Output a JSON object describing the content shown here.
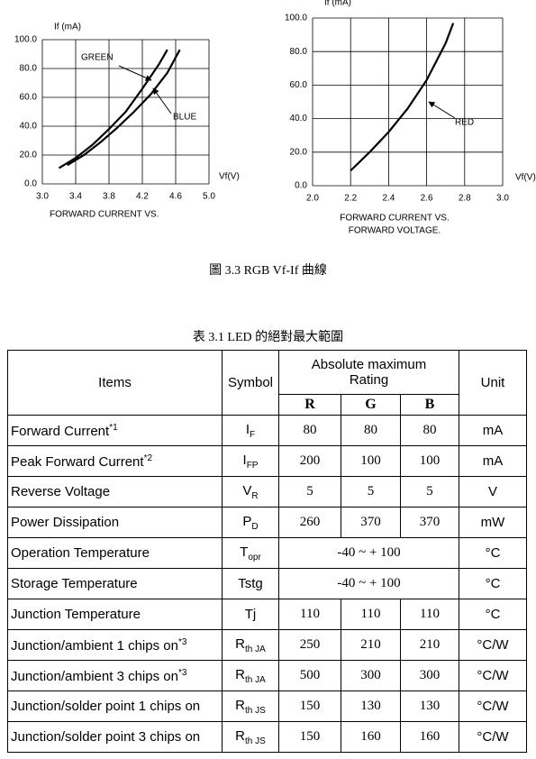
{
  "chart_data": [
    {
      "type": "line",
      "y_label": "If (mA)",
      "x_label": "Vf(V)",
      "subtitle": [
        "FORWARD CURRENT VS."
      ],
      "xlim": [
        3.0,
        5.0
      ],
      "xticks": [
        {
          "value": 3.0,
          "label": "3.0"
        },
        {
          "value": 3.4,
          "label": "3.4"
        },
        {
          "value": 3.8,
          "label": "3.8"
        },
        {
          "value": 4.2,
          "label": "4.2"
        },
        {
          "value": 4.6,
          "label": "4.6"
        },
        {
          "value": 5.0,
          "label": "5.0"
        }
      ],
      "ylim": [
        0,
        100
      ],
      "yticks": [
        {
          "value": 0,
          "label": "0.0"
        },
        {
          "value": 20,
          "label": "20.0"
        },
        {
          "value": 40,
          "label": "40.0"
        },
        {
          "value": 60,
          "label": "60.0"
        },
        {
          "value": 80,
          "label": "80.0"
        },
        {
          "value": 100,
          "label": "100.0"
        }
      ],
      "grid": true,
      "series": [
        {
          "name": "GREEN",
          "color": "#000000",
          "x": [
            3.2,
            3.4,
            3.6,
            3.8,
            4.0,
            4.2,
            4.4,
            4.5
          ],
          "values": [
            11,
            18,
            27,
            38,
            50,
            66,
            83,
            93
          ]
        },
        {
          "name": "BLUE",
          "color": "#000000",
          "x": [
            3.3,
            3.5,
            3.7,
            3.9,
            4.1,
            4.3,
            4.5,
            4.65
          ],
          "values": [
            13,
            20,
            29,
            39,
            50,
            62,
            77,
            93
          ]
        }
      ]
    },
    {
      "type": "line",
      "y_label": "If (mA)",
      "x_label": "Vf(V)",
      "subtitle": [
        "FORWARD CURRENT VS.",
        "FORWARD VOLTAGE."
      ],
      "xlim": [
        2.0,
        3.0
      ],
      "xticks": [
        {
          "value": 2.0,
          "label": "2.0"
        },
        {
          "value": 2.2,
          "label": "2.2"
        },
        {
          "value": 2.4,
          "label": "2.4"
        },
        {
          "value": 2.6,
          "label": "2.6"
        },
        {
          "value": 2.8,
          "label": "2.8"
        },
        {
          "value": 3.0,
          "label": "3.0"
        }
      ],
      "ylim": [
        0,
        100
      ],
      "yticks": [
        {
          "value": 0,
          "label": "0.0"
        },
        {
          "value": 20,
          "label": "20.0"
        },
        {
          "value": 40,
          "label": "40.0"
        },
        {
          "value": 60,
          "label": "60.0"
        },
        {
          "value": 80,
          "label": "80.0"
        },
        {
          "value": 100,
          "label": "100.0"
        }
      ],
      "grid": true,
      "series": [
        {
          "name": "RED",
          "color": "#000000",
          "x": [
            2.2,
            2.3,
            2.4,
            2.5,
            2.6,
            2.7,
            2.74
          ],
          "values": [
            9,
            20,
            32,
            46,
            63,
            85,
            97
          ]
        }
      ]
    }
  ],
  "figure_caption": "圖 3.3  RGB Vf-If 曲線",
  "table_caption": "表 3.1 LED 的絕對最大範圍",
  "table": {
    "header": {
      "items": "Items",
      "symbol": "Symbol",
      "rating": "Absolute maximum Rating",
      "unit": "Unit",
      "channels": [
        "R",
        "G",
        "B"
      ]
    },
    "rows": [
      {
        "item": "Forward Current",
        "note": "*1",
        "symbol": "I",
        "symbol_sub": "F",
        "values": [
          80,
          80,
          80
        ],
        "unit": "mA"
      },
      {
        "item": "Peak Forward Current",
        "note": "*2",
        "symbol": "I",
        "symbol_sub": "FP",
        "values": [
          200,
          100,
          100
        ],
        "unit": "mA"
      },
      {
        "item": "Reverse Voltage",
        "symbol": "V",
        "symbol_sub": "R",
        "values": [
          5,
          5,
          5
        ],
        "unit": "V"
      },
      {
        "item": "Power Dissipation",
        "symbol": "P",
        "symbol_sub": "D",
        "values": [
          260,
          370,
          370
        ],
        "unit": "mW"
      },
      {
        "item": "Operation Temperature",
        "symbol": "T",
        "symbol_sub": "opr",
        "range": "-40 ~ + 100",
        "unit": "°C"
      },
      {
        "item": "Storage Temperature",
        "symbol": "Tstg",
        "range": "-40 ~ + 100",
        "unit": "°C"
      },
      {
        "item": "Junction Temperature",
        "symbol": "Tj",
        "values": [
          110,
          110,
          110
        ],
        "unit": "°C"
      },
      {
        "item": "Junction/ambient 1 chips on",
        "note": "*3",
        "symbol": "R",
        "symbol_sub": "th JA",
        "values": [
          250,
          210,
          210
        ],
        "unit": "°C/W"
      },
      {
        "item": "Junction/ambient 3 chips on",
        "note": "*3",
        "symbol": "R",
        "symbol_sub": "th JA",
        "values": [
          500,
          300,
          300
        ],
        "unit": "°C/W"
      },
      {
        "item": "Junction/solder point 1 chips on",
        "symbol": "R",
        "symbol_sub": "th JS",
        "values": [
          150,
          130,
          130
        ],
        "unit": "°C/W"
      },
      {
        "item": "Junction/solder point 3 chips on",
        "symbol": "R",
        "symbol_sub": "th JS",
        "values": [
          150,
          160,
          160
        ],
        "unit": "°C/W"
      }
    ]
  }
}
